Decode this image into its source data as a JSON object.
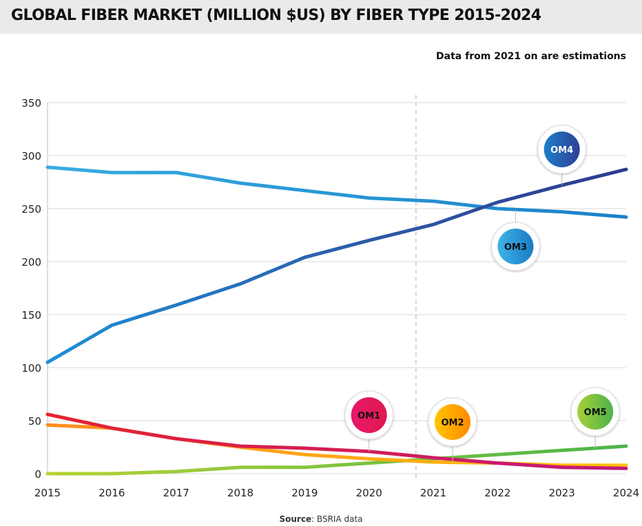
{
  "header": {
    "title": "GLOBAL FIBER MARKET (MILLION $US) BY FIBER TYPE 2015-2024",
    "note": "Data from 2021 on are estimations"
  },
  "source": {
    "label": "Source",
    "text": ": BSRIA data"
  },
  "colors": {
    "OM1": "#e8176a",
    "OM2": "#ffa000",
    "OM3": "#1e8fd6",
    "OM4": "#2e3f96",
    "OM5": "#5bbf3c",
    "grid": "#d9d9d9",
    "divider": "#c9c9c9"
  },
  "chart_data": {
    "type": "line",
    "title": "GLOBAL FIBER MARKET (MILLION $US) BY FIBER TYPE 2015-2024",
    "xlabel": "",
    "ylabel": "",
    "ylim": [
      0,
      350
    ],
    "grid": true,
    "estimate_from": 2021,
    "categories": [
      "2015",
      "2016",
      "2017",
      "2018",
      "2019",
      "2020",
      "2021",
      "2022",
      "2023",
      "2024"
    ],
    "yticks": [
      "0",
      "50",
      "100",
      "150",
      "200",
      "250",
      "300",
      "350"
    ],
    "series": [
      {
        "name": "OM1",
        "values": [
          56,
          43,
          33,
          26,
          24,
          21,
          15,
          10,
          6,
          5
        ]
      },
      {
        "name": "OM2",
        "values": [
          46,
          43,
          33,
          25,
          18,
          14,
          11,
          10,
          8,
          8
        ]
      },
      {
        "name": "OM3",
        "values": [
          289,
          284,
          284,
          274,
          267,
          260,
          257,
          250,
          247,
          242
        ]
      },
      {
        "name": "OM4",
        "values": [
          105,
          140,
          159,
          179,
          204,
          220,
          235,
          256,
          272,
          287
        ]
      },
      {
        "name": "OM5",
        "values": [
          0,
          0,
          2,
          6,
          6,
          10,
          14,
          18,
          22,
          26
        ]
      }
    ],
    "labels": [
      {
        "name": "OM1",
        "anchor_year": "2020"
      },
      {
        "name": "OM2",
        "anchor_year": "2021"
      },
      {
        "name": "OM3",
        "anchor_year": "2022"
      },
      {
        "name": "OM4",
        "anchor_year": "2023"
      },
      {
        "name": "OM5",
        "anchor_year": "2023"
      }
    ]
  }
}
